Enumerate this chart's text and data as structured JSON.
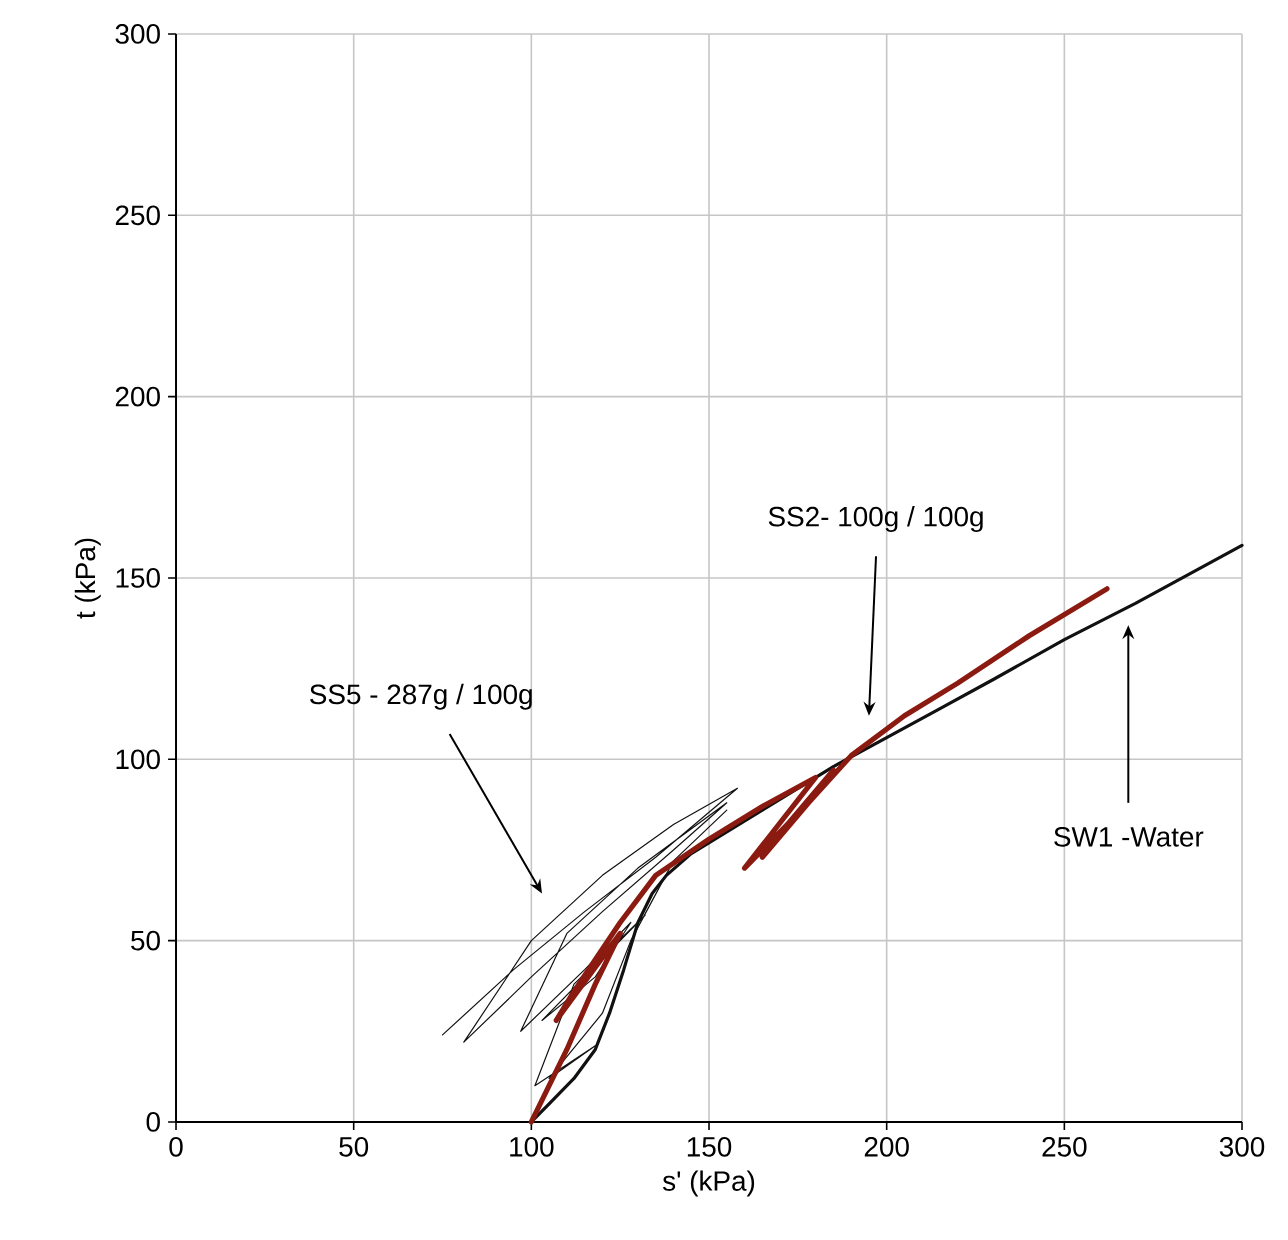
{
  "chart_data": {
    "type": "line",
    "xlabel": "s' (kPa)",
    "ylabel": "t (kPa)",
    "xlim": [
      0,
      300
    ],
    "ylim": [
      0,
      300
    ],
    "xticks": [
      0,
      50,
      100,
      150,
      200,
      250,
      300
    ],
    "yticks": [
      0,
      50,
      100,
      150,
      200,
      250,
      300
    ],
    "grid": true,
    "marker": "none",
    "line_style": "solid",
    "series": [
      {
        "color": "#111111",
        "x": [
          75,
          95,
          115,
          135,
          158,
          140,
          120,
          100,
          81,
          100,
          120,
          140,
          155,
          130,
          110,
          97,
          115,
          128,
          118,
          103,
          125,
          132,
          112,
          101,
          118,
          105,
          120,
          128,
          140,
          155
        ],
        "values": [
          24,
          42,
          58,
          73,
          92,
          82,
          68,
          50,
          22,
          40,
          58,
          75,
          88,
          70,
          52,
          25,
          42,
          55,
          40,
          28,
          50,
          57,
          38,
          10,
          21,
          12,
          30,
          50,
          72,
          86
        ]
      },
      {
        "color": "#111111",
        "x": [
          100,
          105,
          112,
          118,
          122,
          126,
          130,
          134,
          138,
          145,
          155,
          165,
          175,
          185,
          200,
          215,
          230,
          250,
          270,
          285,
          300
        ],
        "values": [
          0,
          5,
          12,
          20,
          30,
          42,
          55,
          63,
          68,
          74,
          80,
          86,
          92,
          98,
          106,
          114,
          122,
          133,
          143,
          151,
          159
        ]
      },
      {
        "color": "#8b1a10",
        "x": [
          100,
          110,
          118,
          125,
          107,
          112,
          125,
          135,
          150,
          165,
          180,
          160,
          172,
          185,
          165,
          178,
          190,
          205,
          220,
          240,
          262
        ],
        "values": [
          0,
          20,
          38,
          52,
          28,
          36,
          55,
          68,
          78,
          87,
          95,
          70,
          82,
          97,
          73,
          88,
          101,
          112,
          121,
          134,
          147
        ]
      }
    ],
    "annotations": [
      "SS5 - 287g / 100g",
      "SS2- 100g / 100g",
      "SW1 -Water"
    ]
  }
}
